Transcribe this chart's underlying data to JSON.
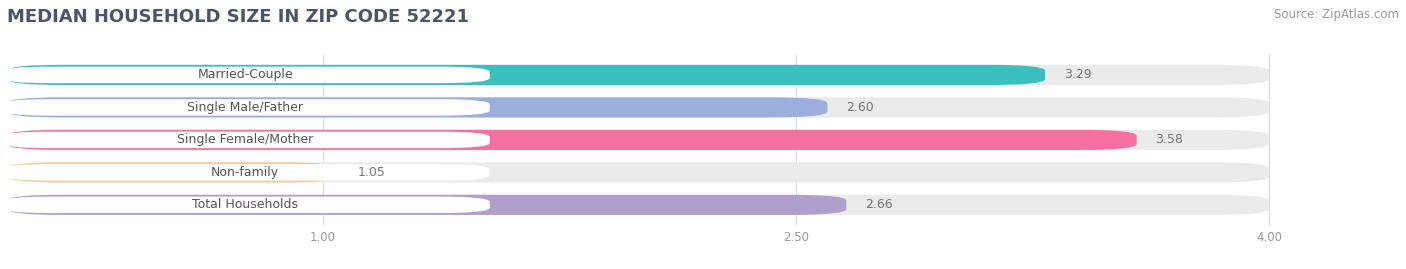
{
  "title": "MEDIAN HOUSEHOLD SIZE IN ZIP CODE 52221",
  "source": "Source: ZipAtlas.com",
  "categories": [
    "Married-Couple",
    "Single Male/Father",
    "Single Female/Mother",
    "Non-family",
    "Total Households"
  ],
  "values": [
    3.29,
    2.6,
    3.58,
    1.05,
    2.66
  ],
  "bar_colors": [
    "#3bbfbf",
    "#9baede",
    "#f76fa0",
    "#f7c99a",
    "#b09fcc"
  ],
  "label_text_colors": [
    "#555555",
    "#555555",
    "#555555",
    "#555555",
    "#555555"
  ],
  "background_color": "#ffffff",
  "bar_bg_color": "#ebebeb",
  "xlim": [
    0,
    4.3
  ],
  "xmin": 0.0,
  "xmax": 4.0,
  "xticks": [
    1.0,
    2.5,
    4.0
  ],
  "title_fontsize": 13,
  "label_fontsize": 9,
  "value_fontsize": 9,
  "source_fontsize": 8.5
}
